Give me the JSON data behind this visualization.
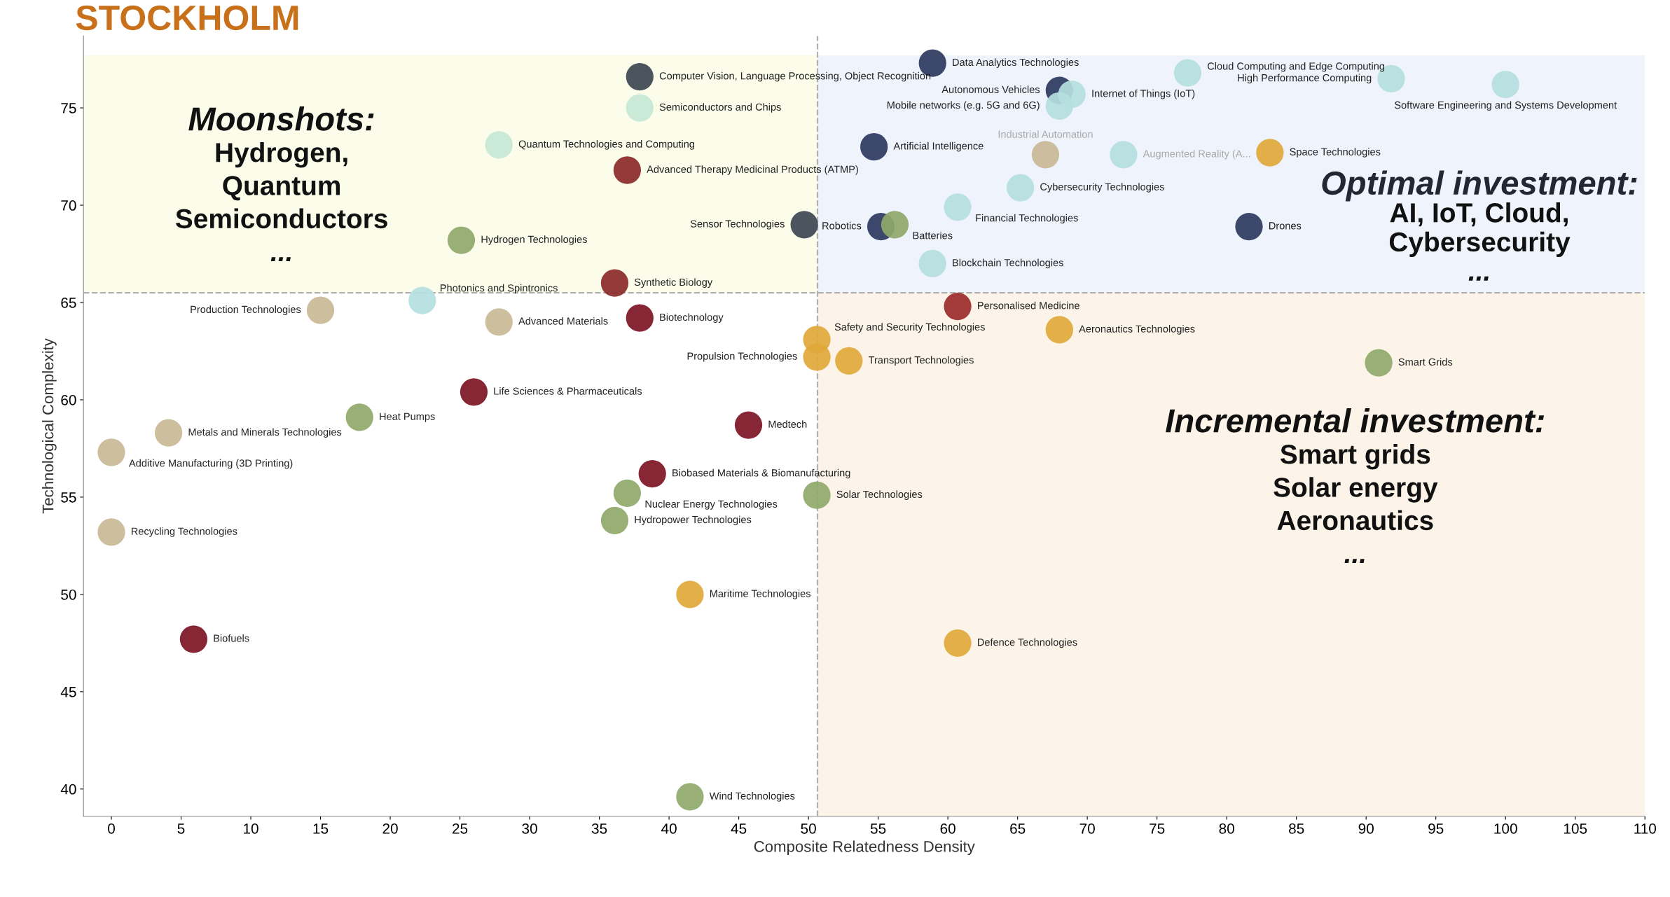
{
  "chart_data": {
    "type": "scatter",
    "title": "STOCKHOLM",
    "xlabel": "Composite Relatedness Density",
    "ylabel": "Technological Complexity",
    "xlim": [
      -2,
      110
    ],
    "xticks": [
      0,
      5,
      10,
      15,
      20,
      25,
      30,
      35,
      40,
      45,
      50,
      55,
      60,
      65,
      70,
      75,
      80,
      85,
      90,
      95,
      100,
      105,
      110
    ],
    "ylim": [
      38.6,
      78.7
    ],
    "yticks": [
      40,
      45,
      50,
      55,
      60,
      65,
      70,
      75
    ],
    "grid": false,
    "legend": false,
    "marker": "circle",
    "x": [
      37.9,
      37.9,
      27.8,
      37.0,
      49.7,
      25.1,
      36.1,
      22.3,
      15.0,
      27.8,
      37.9,
      50.6,
      50.6,
      52.9,
      26.0,
      17.8,
      4.1,
      0,
      45.7,
      38.8,
      37.0,
      36.1,
      50.6,
      0,
      41.5,
      5.9,
      60.7,
      41.5,
      58.9,
      68.0,
      68.9,
      68.0,
      77.2,
      91.8,
      100.0,
      54.7,
      67.0,
      72.6,
      83.1,
      65.2,
      60.7,
      55.2,
      56.2,
      81.6,
      58.9,
      60.7,
      68.0,
      90.9
    ],
    "values": [
      76.6,
      75.0,
      73.1,
      71.8,
      69.0,
      68.2,
      66.0,
      65.1,
      64.6,
      64.0,
      64.2,
      63.1,
      62.2,
      62.0,
      60.4,
      59.1,
      58.3,
      57.3,
      58.7,
      56.2,
      55.2,
      53.8,
      55.1,
      53.2,
      50.0,
      47.7,
      47.5,
      39.6,
      77.3,
      75.9,
      75.7,
      75.1,
      76.8,
      76.5,
      76.2,
      73.0,
      72.6,
      72.6,
      72.7,
      70.9,
      69.9,
      68.9,
      69.0,
      68.9,
      67.0,
      64.8,
      63.6,
      61.9
    ],
    "colors": [
      "#3d4650",
      "#c5e8d5",
      "#c5e8d5",
      "#8b2a2a",
      "#3d4650",
      "#8fa86a",
      "#8b2a2a",
      "#b5e0e0",
      "#c9b896",
      "#c9b896",
      "#7d1324",
      "#e0a83a",
      "#e0a83a",
      "#e0a83a",
      "#7d1324",
      "#8fa86a",
      "#c9b896",
      "#c9b896",
      "#7d1324",
      "#7d1324",
      "#8fa86a",
      "#8fa86a",
      "#8fa86a",
      "#c9b896",
      "#e0a83a",
      "#7d1324",
      "#e0a83a",
      "#8fa86a",
      "#2c3a5e",
      "#2c3a5e",
      "#b5e0e0",
      "#b5e0e0",
      "#b5e0e0",
      "#b5e0e0",
      "#b5e0e0",
      "#2c3a5e",
      "#c9b896",
      "#b5e0e0",
      "#e0a83a",
      "#b5e0e0",
      "#b5e0e0",
      "#2c3a5e",
      "#8fa86a",
      "#2c3a5e",
      "#b5e0e0",
      "#9b2a2a",
      "#e0a83a",
      "#8fa86a"
    ],
    "annotations": [
      {
        "text": "Computer Vision, Language Processing, Object Recognition",
        "x": 37.9,
        "y": 76.6
      },
      {
        "text": "Semiconductors and Chips",
        "x": 37.9,
        "y": 75.0
      },
      {
        "text": "Quantum Technologies and Computing",
        "x": 27.8,
        "y": 73.1
      },
      {
        "text": "Advanced Therapy Medicinal Products (ATMP)",
        "x": 37.0,
        "y": 71.8
      },
      {
        "text": "Sensor Technologies",
        "x": 49.7,
        "y": 69.0
      },
      {
        "text": "Hydrogen Technologies",
        "x": 25.1,
        "y": 68.2
      },
      {
        "text": "Synthetic Biology",
        "x": 36.1,
        "y": 66.0
      },
      {
        "text": "Photonics and Spintronics",
        "x": 22.3,
        "y": 65.1
      },
      {
        "text": "Production Technologies",
        "x": 15.0,
        "y": 64.6
      },
      {
        "text": "Advanced Materials",
        "x": 27.8,
        "y": 64.0
      },
      {
        "text": "Biotechnology",
        "x": 37.9,
        "y": 64.2
      },
      {
        "text": "Safety and Security Technologies",
        "x": 50.6,
        "y": 63.1
      },
      {
        "text": "Propulsion Technologies",
        "x": 50.6,
        "y": 62.2
      },
      {
        "text": "Transport Technologies",
        "x": 52.9,
        "y": 62.0
      },
      {
        "text": "Life Sciences & Pharmaceuticals",
        "x": 26.0,
        "y": 60.4
      },
      {
        "text": "Heat Pumps",
        "x": 17.8,
        "y": 59.1
      },
      {
        "text": "Metals and Minerals Technologies",
        "x": 4.1,
        "y": 58.3
      },
      {
        "text": "Additive Manufacturing (3D Printing)",
        "x": 0,
        "y": 57.3
      },
      {
        "text": "Medtech",
        "x": 45.7,
        "y": 58.7
      },
      {
        "text": "Biobased Materials & Biomanufacturing",
        "x": 38.8,
        "y": 56.2
      },
      {
        "text": "Nuclear Energy Technologies",
        "x": 37.0,
        "y": 55.2
      },
      {
        "text": "Hydropower Technologies",
        "x": 36.1,
        "y": 53.8
      },
      {
        "text": "Solar Technologies",
        "x": 50.6,
        "y": 55.1
      },
      {
        "text": "Recycling Technologies",
        "x": 0,
        "y": 53.2
      },
      {
        "text": "Maritime Technologies",
        "x": 41.5,
        "y": 50.0
      },
      {
        "text": "Biofuels",
        "x": 5.9,
        "y": 47.7
      },
      {
        "text": "Defence Technologies",
        "x": 60.7,
        "y": 47.5
      },
      {
        "text": "Wind Technologies",
        "x": 41.5,
        "y": 39.6
      },
      {
        "text": "Data Analytics Technologies",
        "x": 58.9,
        "y": 77.3
      },
      {
        "text": "Autonomous Vehicles",
        "x": 68.0,
        "y": 75.9
      },
      {
        "text": "Internet of Things (IoT)",
        "x": 68.9,
        "y": 75.7
      },
      {
        "text": "Mobile networks (e.g. 5G and 6G)",
        "x": 68.0,
        "y": 75.1
      },
      {
        "text": "Cloud Computing and Edge Computing",
        "x": 77.2,
        "y": 76.8
      },
      {
        "text": "High Performance Computing",
        "x": 91.8,
        "y": 76.5
      },
      {
        "text": "Software Engineering and Systems Development",
        "x": 100.0,
        "y": 76.2
      },
      {
        "text": "Artificial Intelligence",
        "x": 54.7,
        "y": 73.0
      },
      {
        "text": "Industrial Automation",
        "x": 67.0,
        "y": 72.6
      },
      {
        "text": "Augmented Reality (A...",
        "x": 72.6,
        "y": 72.6
      },
      {
        "text": "Space Technologies",
        "x": 83.1,
        "y": 72.7
      },
      {
        "text": "Cybersecurity Technologies",
        "x": 65.2,
        "y": 70.9
      },
      {
        "text": "Financial Technologies",
        "x": 60.7,
        "y": 69.9
      },
      {
        "text": "Robotics",
        "x": 55.2,
        "y": 68.9
      },
      {
        "text": "Batteries",
        "x": 56.2,
        "y": 69.0
      },
      {
        "text": "Drones",
        "x": 81.6,
        "y": 68.9
      },
      {
        "text": "Blockchain Technologies",
        "x": 58.9,
        "y": 67.0
      },
      {
        "text": "Personalised Medicine",
        "x": 60.7,
        "y": 64.8
      },
      {
        "text": "Aeronautics Technologies",
        "x": 68.0,
        "y": 63.6
      },
      {
        "text": "Smart Grids",
        "x": 90.9,
        "y": 61.9
      }
    ],
    "ref_lines": [
      {
        "axis": "x",
        "value": 50.65,
        "color": "#b0b0b0",
        "line_style": "dashed"
      },
      {
        "axis": "y",
        "value": 65.5,
        "color": "#b0b0b0",
        "line_style": "dashed"
      }
    ],
    "bands": [
      {
        "axis": "x",
        "from": -2,
        "to": 50.65,
        "color": "#fbfce9",
        "label": "Moonshots:\nHydrogen,\nQuantum\nSemiconductors\n..."
      },
      {
        "axis": "x",
        "from": 50.65,
        "to": 110,
        "color": "#eef3fc",
        "label": "Optimal investment:\nAI, IoT, Cloud,\nCybersecurity\n..."
      },
      {
        "axis": "x",
        "from": 50.65,
        "to": 110,
        "color": "#fdf4e9",
        "label": "Incremental investment:\nSmart grids\nSolar energy\nAeronautics\n..."
      }
    ]
  }
}
